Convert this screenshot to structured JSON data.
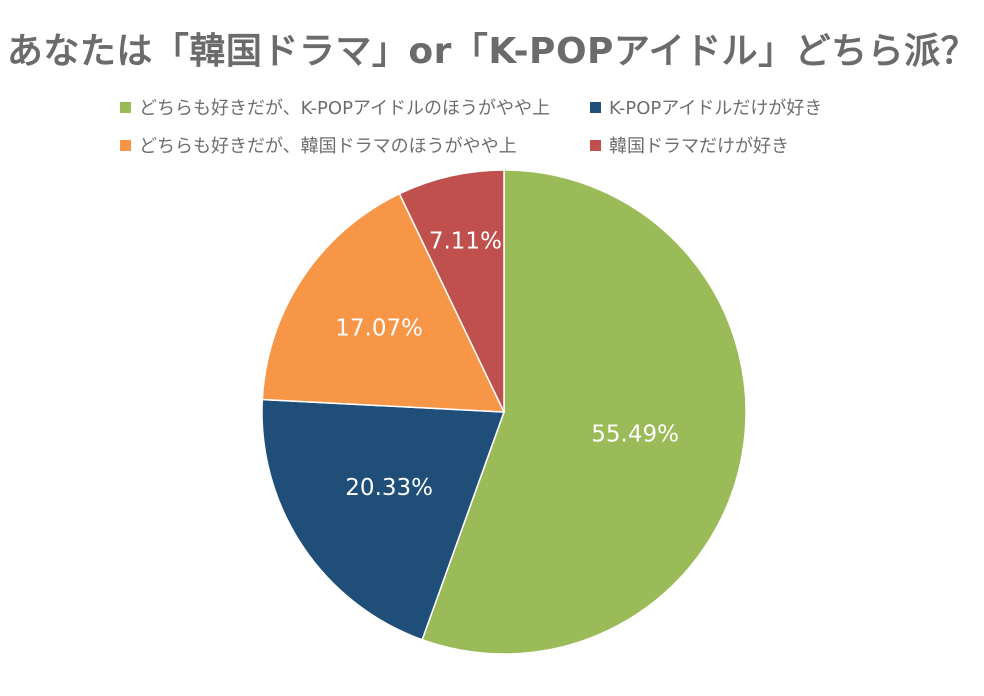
{
  "chart_data": {
    "type": "pie",
    "title": "あなたは「韓国ドラマ」or「K-POPアイドル」どちら派？",
    "legend_position": "top",
    "slices": [
      {
        "label": "どちらも好きだが、K-POPアイドルのほうがやや上",
        "value": 55.49,
        "display": "55.49%",
        "color": "#9bbb59"
      },
      {
        "label": "K-POPアイドルだけが好き",
        "value": 20.33,
        "display": "20.33%",
        "color": "#1f4e79"
      },
      {
        "label": "どちらも好きだが、韓国ドラマのほうがやや上",
        "value": 17.07,
        "display": "17.07%",
        "color": "#f79646"
      },
      {
        "label": "韓国ドラマだけが好き",
        "value": 7.11,
        "display": "7.11%",
        "color": "#c0504d"
      }
    ]
  }
}
